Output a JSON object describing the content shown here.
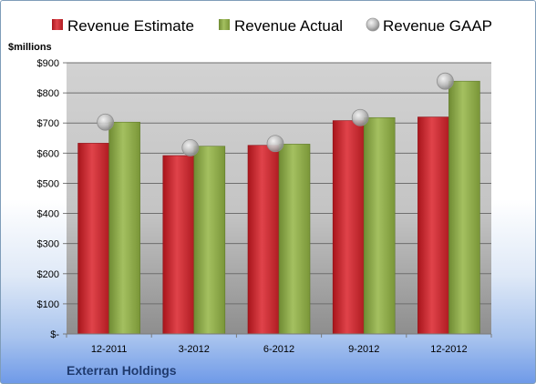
{
  "chart_data": {
    "type": "bar",
    "company": "Exterran Holdings",
    "ylabel": "$millions",
    "categories": [
      "12-2011",
      "3-2012",
      "6-2012",
      "9-2012",
      "12-2012"
    ],
    "series": [
      {
        "name": "Revenue Estimate",
        "kind": "bar",
        "color": "#cc2229",
        "values": [
          633,
          592,
          626,
          708,
          720
        ]
      },
      {
        "name": "Revenue Actual",
        "kind": "bar",
        "color": "#8aa645",
        "values": [
          703,
          623,
          630,
          718,
          839
        ]
      },
      {
        "name": "Revenue GAAP",
        "kind": "marker",
        "color": "#b8b8b8",
        "values": [
          703,
          618,
          632,
          718,
          839
        ]
      }
    ],
    "ylim": [
      0,
      900
    ],
    "yticks": [
      0,
      100,
      200,
      300,
      400,
      500,
      600,
      700,
      800,
      900
    ],
    "ytick_labels": [
      "$-",
      "$100",
      "$200",
      "$300",
      "$400",
      "$500",
      "$600",
      "$700",
      "$800",
      "$900"
    ],
    "grid": true,
    "legend_position": "top"
  }
}
